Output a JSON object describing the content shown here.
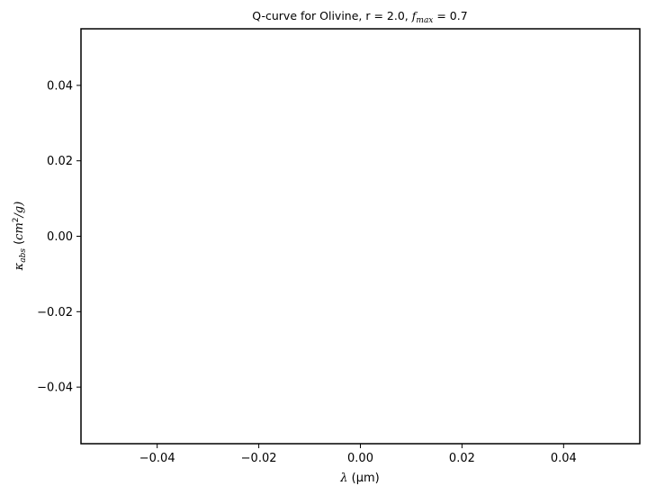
{
  "chart_data": {
    "type": "line",
    "title_prefix": "Q-curve for Olivine, r = 2.0, ",
    "title_f": "f",
    "title_f_sub": "max",
    "title_suffix": " = 0.7",
    "xlabel_symbol": "λ",
    "xlabel_unit": " (μm)",
    "ylabel_kappa": "κ",
    "ylabel_kappa_sub": "abs",
    "ylabel_unit_open": " (",
    "ylabel_unit_cm": "cm",
    "ylabel_unit_exp": "2",
    "ylabel_unit_rest": "/g)",
    "xlim": [
      -0.055,
      0.055
    ],
    "ylim": [
      -0.055,
      0.055
    ],
    "xticks": [
      -0.04,
      -0.02,
      0.0,
      0.02,
      0.04
    ],
    "yticks": [
      -0.04,
      -0.02,
      0.0,
      0.02,
      0.04
    ],
    "xtick_labels": [
      "−0.04",
      "−0.02",
      "0.00",
      "0.02",
      "0.04"
    ],
    "ytick_labels": [
      "−0.04",
      "−0.02",
      "0.00",
      "0.02",
      "0.04"
    ],
    "series": [],
    "grid": false
  }
}
